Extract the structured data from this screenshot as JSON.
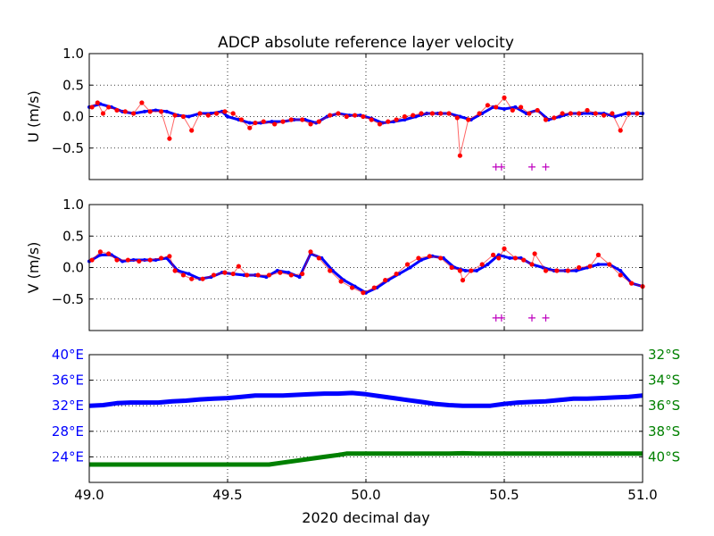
{
  "title": "ADCP absolute reference layer velocity",
  "chart_data": [
    {
      "type": "scatter",
      "id": "u",
      "ylabel": "U (m/s)",
      "xlim": [
        49.0,
        51.0
      ],
      "ylim": [
        -1.0,
        1.0
      ],
      "yticks": [
        "1.0",
        "0.5",
        "0.0",
        "−0.5"
      ],
      "ytick_values": [
        1.0,
        0.5,
        0.0,
        -0.5
      ],
      "grid": true,
      "series": [
        {
          "color": "#0000ff",
          "x": [
            49.0,
            49.04,
            49.08,
            49.12,
            49.16,
            49.2,
            49.24,
            49.28,
            49.32,
            49.36,
            49.4,
            49.44,
            49.48,
            49.5,
            49.54,
            49.58,
            49.62,
            49.66,
            49.7,
            49.74,
            49.78,
            49.82,
            49.86,
            49.9,
            49.94,
            49.98,
            50.02,
            50.06,
            50.1,
            50.14,
            50.18,
            50.22,
            50.26,
            50.3,
            50.34,
            50.38,
            50.42,
            50.46,
            50.5,
            50.54,
            50.58,
            50.62,
            50.66,
            50.7,
            50.74,
            50.78,
            50.82,
            50.86,
            50.9,
            50.94,
            50.98,
            51.0
          ],
          "y": [
            0.15,
            0.2,
            0.15,
            0.08,
            0.05,
            0.08,
            0.1,
            0.08,
            0.02,
            0.0,
            0.05,
            0.05,
            0.08,
            0.0,
            -0.05,
            -0.1,
            -0.1,
            -0.08,
            -0.08,
            -0.05,
            -0.05,
            -0.1,
            0.0,
            0.05,
            0.02,
            0.02,
            -0.03,
            -0.1,
            -0.08,
            -0.05,
            0.0,
            0.05,
            0.05,
            0.05,
            0.0,
            -0.05,
            0.05,
            0.15,
            0.12,
            0.15,
            0.05,
            0.1,
            -0.05,
            0.0,
            0.05,
            0.05,
            0.05,
            0.05,
            0.0,
            0.05,
            0.05,
            0.05
          ]
        },
        {
          "color": "#ff0000",
          "x": [
            49.01,
            49.03,
            49.05,
            49.07,
            49.1,
            49.13,
            49.16,
            49.19,
            49.22,
            49.26,
            49.29,
            49.31,
            49.34,
            49.37,
            49.4,
            49.43,
            49.46,
            49.49,
            49.52,
            49.55,
            49.58,
            49.6,
            49.63,
            49.67,
            49.7,
            49.73,
            49.77,
            49.8,
            49.83,
            49.87,
            49.9,
            49.93,
            49.96,
            49.99,
            50.02,
            50.05,
            50.08,
            50.11,
            50.14,
            50.17,
            50.2,
            50.24,
            50.27,
            50.3,
            50.33,
            50.34,
            50.37,
            50.41,
            50.44,
            50.47,
            50.5,
            50.53,
            50.56,
            50.59,
            50.62,
            50.65,
            50.68,
            50.71,
            50.74,
            50.77,
            50.8,
            50.83,
            50.86,
            50.89,
            50.92,
            50.95,
            50.98
          ],
          "y": [
            0.15,
            0.22,
            0.05,
            0.15,
            0.1,
            0.08,
            0.05,
            0.22,
            0.08,
            0.08,
            -0.35,
            0.02,
            0.0,
            -0.22,
            0.05,
            0.02,
            0.05,
            0.08,
            0.05,
            -0.05,
            -0.18,
            -0.1,
            -0.08,
            -0.12,
            -0.08,
            -0.05,
            -0.05,
            -0.12,
            -0.08,
            0.02,
            0.05,
            0.0,
            0.02,
            0.0,
            -0.05,
            -0.12,
            -0.08,
            -0.05,
            0.0,
            0.02,
            0.05,
            0.05,
            0.05,
            0.05,
            -0.02,
            -0.62,
            -0.05,
            0.05,
            0.18,
            0.15,
            0.3,
            0.1,
            0.15,
            0.05,
            0.1,
            -0.05,
            -0.02,
            0.05,
            0.05,
            0.05,
            0.1,
            0.05,
            0.02,
            0.05,
            -0.22,
            0.05,
            0.05
          ]
        },
        {
          "color": "#bf00bf",
          "marker": "+",
          "x": [
            50.47,
            50.49,
            50.6,
            50.65
          ],
          "y": [
            -0.8,
            -0.8,
            -0.8,
            -0.8
          ]
        }
      ]
    },
    {
      "type": "scatter",
      "id": "v",
      "ylabel": "V (m/s)",
      "xlim": [
        49.0,
        51.0
      ],
      "ylim": [
        -1.0,
        1.0
      ],
      "yticks": [
        "1.0",
        "0.5",
        "0.0",
        "−0.5"
      ],
      "ytick_values": [
        1.0,
        0.5,
        0.0,
        -0.5
      ],
      "grid": true,
      "series": [
        {
          "color": "#0000ff",
          "x": [
            49.0,
            49.04,
            49.08,
            49.12,
            49.16,
            49.2,
            49.24,
            49.28,
            49.32,
            49.36,
            49.4,
            49.44,
            49.48,
            49.52,
            49.56,
            49.6,
            49.64,
            49.68,
            49.72,
            49.76,
            49.8,
            49.84,
            49.88,
            49.92,
            49.96,
            50.0,
            50.04,
            50.08,
            50.12,
            50.16,
            50.2,
            50.24,
            50.28,
            50.32,
            50.36,
            50.4,
            50.44,
            50.48,
            50.52,
            50.56,
            50.6,
            50.64,
            50.68,
            50.72,
            50.76,
            50.8,
            50.84,
            50.88,
            50.92,
            50.96,
            51.0
          ],
          "y": [
            0.1,
            0.2,
            0.2,
            0.1,
            0.12,
            0.12,
            0.12,
            0.15,
            -0.05,
            -0.1,
            -0.18,
            -0.15,
            -0.08,
            -0.1,
            -0.12,
            -0.12,
            -0.15,
            -0.05,
            -0.08,
            -0.15,
            0.22,
            0.15,
            -0.05,
            -0.2,
            -0.3,
            -0.4,
            -0.32,
            -0.2,
            -0.1,
            0.0,
            0.12,
            0.18,
            0.15,
            0.0,
            -0.05,
            -0.05,
            0.05,
            0.2,
            0.15,
            0.15,
            0.05,
            0.0,
            -0.05,
            -0.05,
            -0.05,
            0.0,
            0.05,
            0.05,
            -0.05,
            -0.25,
            -0.3
          ]
        },
        {
          "color": "#ff0000",
          "x": [
            49.01,
            49.04,
            49.07,
            49.1,
            49.14,
            49.18,
            49.22,
            49.26,
            49.29,
            49.31,
            49.34,
            49.37,
            49.41,
            49.45,
            49.49,
            49.52,
            49.54,
            49.57,
            49.61,
            49.65,
            49.69,
            49.73,
            49.77,
            49.8,
            49.83,
            49.87,
            49.91,
            49.95,
            49.99,
            50.03,
            50.07,
            50.11,
            50.15,
            50.19,
            50.23,
            50.27,
            50.31,
            50.34,
            50.35,
            50.38,
            50.42,
            50.46,
            50.48,
            50.5,
            50.54,
            50.57,
            50.6,
            50.61,
            50.65,
            50.69,
            50.73,
            50.77,
            50.81,
            50.84,
            50.88,
            50.92,
            50.96,
            51.0
          ],
          "y": [
            0.12,
            0.25,
            0.22,
            0.12,
            0.12,
            0.1,
            0.12,
            0.15,
            0.18,
            -0.05,
            -0.12,
            -0.18,
            -0.18,
            -0.12,
            -0.08,
            -0.1,
            0.02,
            -0.12,
            -0.12,
            -0.12,
            -0.08,
            -0.12,
            -0.1,
            0.25,
            0.15,
            -0.05,
            -0.22,
            -0.32,
            -0.4,
            -0.32,
            -0.2,
            -0.1,
            0.05,
            0.15,
            0.18,
            0.15,
            0.0,
            -0.05,
            -0.2,
            -0.05,
            0.05,
            0.2,
            0.15,
            0.3,
            0.15,
            0.12,
            0.05,
            0.22,
            -0.05,
            -0.05,
            -0.05,
            0.0,
            0.02,
            0.2,
            0.05,
            -0.12,
            -0.25,
            -0.3
          ]
        },
        {
          "color": "#bf00bf",
          "marker": "+",
          "x": [
            50.47,
            50.49,
            50.6,
            50.65
          ],
          "y": [
            -0.8,
            -0.8,
            -0.8,
            -0.8
          ]
        }
      ]
    },
    {
      "type": "line",
      "id": "position",
      "xlabel": "2020 decimal day",
      "xlim": [
        49.0,
        51.0
      ],
      "xticks": [
        "49.0",
        "49.5",
        "50.0",
        "50.5",
        "51.0"
      ],
      "xtick_values": [
        49.0,
        49.5,
        50.0,
        50.5,
        51.0
      ],
      "grid": true,
      "left_axis": {
        "color": "#0000ff",
        "ylim": [
          20,
          40
        ],
        "yticks": [
          "40°E",
          "36°E",
          "32°E",
          "28°E",
          "24°E"
        ],
        "ytick_values": [
          40,
          36,
          32,
          28,
          24
        ]
      },
      "right_axis": {
        "color": "#008000",
        "ylim": [
          42,
          32
        ],
        "yticks": [
          "32°S",
          "34°S",
          "36°S",
          "38°S",
          "40°S"
        ],
        "ytick_values": [
          32,
          34,
          36,
          38,
          40
        ]
      },
      "series": [
        {
          "axis": "left",
          "color": "#0000ff",
          "x": [
            49.0,
            49.05,
            49.1,
            49.15,
            49.2,
            49.25,
            49.3,
            49.35,
            49.4,
            49.45,
            49.5,
            49.55,
            49.6,
            49.65,
            49.7,
            49.75,
            49.8,
            49.85,
            49.9,
            49.95,
            50.0,
            50.05,
            50.1,
            50.15,
            50.2,
            50.25,
            50.3,
            50.35,
            50.4,
            50.45,
            50.5,
            50.55,
            50.6,
            50.65,
            50.7,
            50.75,
            50.8,
            50.85,
            50.9,
            50.95,
            51.0
          ],
          "y": [
            32.0,
            32.1,
            32.4,
            32.5,
            32.5,
            32.5,
            32.7,
            32.8,
            33.0,
            33.1,
            33.2,
            33.4,
            33.6,
            33.6,
            33.6,
            33.7,
            33.8,
            33.9,
            33.9,
            34.0,
            33.8,
            33.5,
            33.2,
            32.9,
            32.6,
            32.3,
            32.1,
            32.0,
            32.0,
            32.0,
            32.3,
            32.5,
            32.6,
            32.7,
            32.9,
            33.1,
            33.1,
            33.2,
            33.3,
            33.4,
            33.6
          ]
        },
        {
          "axis": "right",
          "color": "#008000",
          "x": [
            49.0,
            49.1,
            49.2,
            49.3,
            49.4,
            49.5,
            49.6,
            49.65,
            49.7,
            49.75,
            49.8,
            49.85,
            49.9,
            49.93,
            50.0,
            50.1,
            50.2,
            50.3,
            50.35,
            50.4,
            50.5,
            50.6,
            50.7,
            50.8,
            50.9,
            51.0
          ],
          "y": [
            40.6,
            40.6,
            40.6,
            40.6,
            40.6,
            40.6,
            40.6,
            40.6,
            40.45,
            40.3,
            40.15,
            40.0,
            39.85,
            39.75,
            39.75,
            39.75,
            39.75,
            39.75,
            39.72,
            39.75,
            39.75,
            39.75,
            39.75,
            39.75,
            39.75,
            39.75
          ]
        }
      ]
    }
  ]
}
